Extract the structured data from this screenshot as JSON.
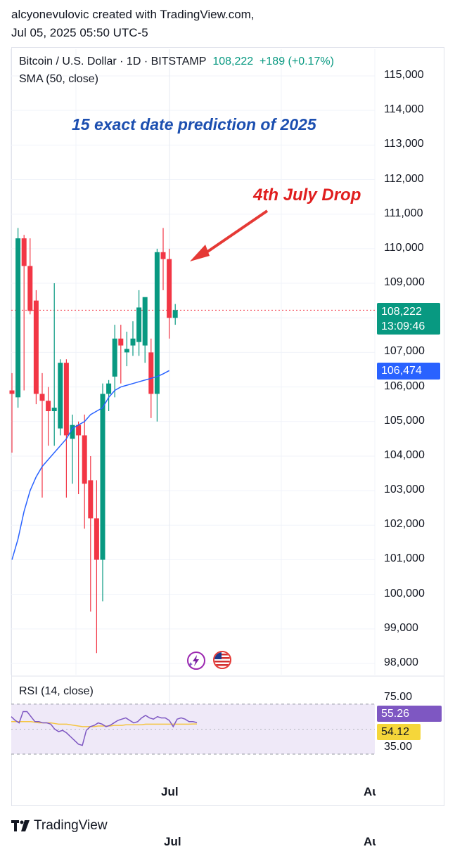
{
  "header": {
    "line1": "alcyonevulovic created with TradingView.com,",
    "line2": "Jul 05, 2025 05:50 UTC-5"
  },
  "legend": {
    "symbol": "Bitcoin / U.S. Dollar · 1D · BITSTAMP",
    "last": "108,222",
    "change": "+189 (+0.17%)",
    "sma": "SMA (50, close)",
    "rsi": "RSI (14, close)"
  },
  "annotations": {
    "title": "15 exact date prediction of 2025",
    "drop": "4th July Drop"
  },
  "badges": {
    "price": "108,222",
    "countdown": "13:09:46",
    "sma": "106,474",
    "rsi": "55.26",
    "rsi_ma": "54.12"
  },
  "colors": {
    "up": "#089981",
    "down": "#f23645",
    "sma": "#2962ff",
    "rsi": "#7e57c2",
    "rsi_ma": "#f5c542",
    "annotation_title": "#1c4fb0",
    "annotation_drop": "#e01e1e"
  },
  "icons": [
    "lightning-event-icon",
    "us-flag-event-icon",
    "tradingview-logo-icon"
  ],
  "brand": "TradingView",
  "chart_data": [
    {
      "type": "candlestick",
      "xlabels": [
        "Jul",
        "Au"
      ],
      "y_ticks": [
        "115,000",
        "114,000",
        "113,000",
        "112,000",
        "111,000",
        "110,000",
        "109,000",
        "107,000",
        "106,000",
        "105,000",
        "104,000",
        "103,000",
        "102,000",
        "101,000",
        "100,000",
        "99,000",
        "98,000"
      ],
      "ylim": [
        97700,
        115500
      ],
      "current_price": 108222,
      "series": [
        {
          "name": "BTCUSD",
          "ohlc": [
            [
              105900,
              106400,
              104100,
              105800
            ],
            [
              105700,
              110600,
              105400,
              110300
            ],
            [
              110300,
              110400,
              105900,
              109500
            ],
            [
              109500,
              110300,
              108100,
              108200
            ],
            [
              108500,
              108800,
              105500,
              105800
            ],
            [
              105800,
              106400,
              102800,
              105600
            ],
            [
              105600,
              106000,
              104300,
              105300
            ],
            [
              105300,
              109000,
              104300,
              105400
            ],
            [
              104800,
              106800,
              104600,
              106700
            ],
            [
              106700,
              106800,
              102800,
              104600
            ],
            [
              104500,
              105200,
              103200,
              104900
            ],
            [
              104900,
              105000,
              102900,
              104600
            ],
            [
              104600,
              105200,
              101900,
              103200
            ],
            [
              103300,
              104000,
              99500,
              102200
            ],
            [
              102200,
              103300,
              98300,
              101000
            ],
            [
              101000,
              106100,
              99800,
              105800
            ],
            [
              105800,
              106200,
              105300,
              106100
            ],
            [
              106300,
              107800,
              105700,
              107400
            ],
            [
              107400,
              107800,
              106100,
              107200
            ],
            [
              107000,
              107600,
              106600,
              107100
            ],
            [
              107200,
              107900,
              106900,
              107400
            ],
            [
              107300,
              108800,
              106900,
              108300
            ],
            [
              107200,
              108500,
              106700,
              108600
            ],
            [
              107000,
              107400,
              105100,
              105800
            ],
            [
              105800,
              110000,
              105000,
              109900
            ],
            [
              109900,
              110600,
              108800,
              109700
            ],
            [
              109700,
              110000,
              107400,
              108000
            ],
            [
              108000,
              108400,
              107800,
              108222
            ]
          ]
        },
        {
          "name": "SMA 50",
          "values": [
            101000,
            101600,
            102400,
            103000,
            103400,
            103700,
            103900,
            104100,
            104300,
            104500,
            104800,
            104900,
            105000,
            105200,
            105300,
            105400,
            105700,
            105900,
            106000,
            106050,
            106100,
            106150,
            106200,
            106250,
            106300,
            106380,
            106474
          ]
        }
      ]
    },
    {
      "type": "line",
      "title": "RSI (14, close)",
      "y_ticks": [
        "75.00",
        "35.00"
      ],
      "ylim": [
        30,
        78
      ],
      "series": [
        {
          "name": "RSI",
          "values": [
            60,
            57,
            55,
            64,
            64,
            60,
            56,
            56,
            55,
            55,
            54,
            50,
            48,
            49,
            47,
            44,
            41,
            38,
            37,
            49,
            52,
            53,
            55,
            54,
            52,
            53,
            55,
            57,
            58,
            59,
            57,
            55,
            56,
            59,
            61,
            59,
            58,
            60,
            59,
            59,
            57,
            52,
            58,
            59,
            58,
            56,
            56,
            55.26
          ]
        },
        {
          "name": "RSI MA",
          "values": [
            56,
            56,
            56,
            56,
            56,
            56,
            55.5,
            55,
            55,
            55,
            55,
            54.5,
            54,
            54,
            54,
            53.5,
            53,
            52.5,
            52,
            52,
            52,
            52,
            52.5,
            52.5,
            52.5,
            52.5,
            53,
            53,
            53,
            53.5,
            53.5,
            53.5,
            53.5,
            53.5,
            54,
            54,
            54,
            54,
            54,
            54,
            54,
            54,
            54,
            54,
            54,
            54,
            54.1,
            54.12
          ]
        }
      ]
    }
  ]
}
